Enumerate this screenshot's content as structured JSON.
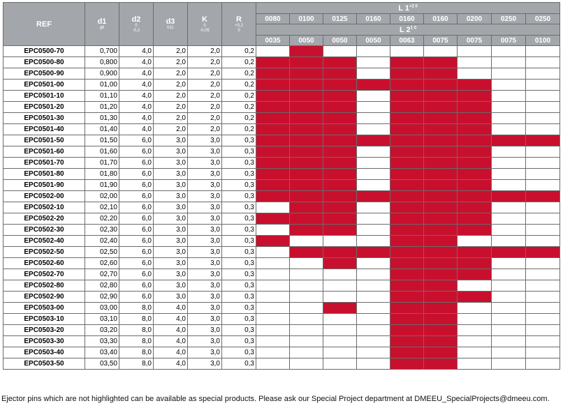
{
  "headers": {
    "ref": "REF",
    "d1": "d1",
    "d1_tol": "g6",
    "d2": "d2",
    "d2_tol_top": "0",
    "d2_tol_bottom": "-0,2",
    "d3": "d3",
    "d3_tol": "h11",
    "k": "K",
    "k_tol_top": "0",
    "k_tol_bottom": "-0,05",
    "r": "R",
    "r_tol_top": "+0,2",
    "r_tol_bottom": "0",
    "l1": "L 1",
    "l1_tol": "+2 0",
    "l2": "L 2",
    "l2_tol": "1 0"
  },
  "l1_values": [
    "0080",
    "0100",
    "0125",
    "0160",
    "0160",
    "0160",
    "0200",
    "0250",
    "0250"
  ],
  "l2_values": [
    "0035",
    "0050",
    "0050",
    "0050",
    "0063",
    "0075",
    "0075",
    "0075",
    "0100"
  ],
  "highlight_color": "#c8102e",
  "rows": [
    {
      "ref": "EPC0500-70",
      "d1": "0,700",
      "d2": "4,0",
      "d3": "2,0",
      "k": "2,0",
      "r": "0,2",
      "avail": [
        0,
        1,
        0,
        0,
        0,
        0,
        0,
        0,
        0
      ]
    },
    {
      "ref": "EPC0500-80",
      "d1": "0,800",
      "d2": "4,0",
      "d3": "2,0",
      "k": "2,0",
      "r": "0,2",
      "avail": [
        1,
        1,
        1,
        0,
        1,
        1,
        0,
        0,
        0
      ]
    },
    {
      "ref": "EPC0500-90",
      "d1": "0,900",
      "d2": "4,0",
      "d3": "2,0",
      "k": "2,0",
      "r": "0,2",
      "avail": [
        1,
        1,
        1,
        0,
        1,
        1,
        0,
        0,
        0
      ]
    },
    {
      "ref": "EPC0501-00",
      "d1": "01,00",
      "d2": "4,0",
      "d3": "2,0",
      "k": "2,0",
      "r": "0,2",
      "avail": [
        1,
        1,
        1,
        1,
        1,
        1,
        1,
        0,
        0
      ]
    },
    {
      "ref": "EPC0501-10",
      "d1": "01,10",
      "d2": "4,0",
      "d3": "2,0",
      "k": "2,0",
      "r": "0,2",
      "avail": [
        1,
        1,
        1,
        0,
        1,
        1,
        1,
        0,
        0
      ]
    },
    {
      "ref": "EPC0501-20",
      "d1": "01,20",
      "d2": "4,0",
      "d3": "2,0",
      "k": "2,0",
      "r": "0,2",
      "avail": [
        1,
        1,
        1,
        0,
        1,
        1,
        1,
        0,
        0
      ]
    },
    {
      "ref": "EPC0501-30",
      "d1": "01,30",
      "d2": "4,0",
      "d3": "2,0",
      "k": "2,0",
      "r": "0,2",
      "avail": [
        1,
        1,
        1,
        0,
        1,
        1,
        1,
        0,
        0
      ]
    },
    {
      "ref": "EPC0501-40",
      "d1": "01,40",
      "d2": "4,0",
      "d3": "2,0",
      "k": "2,0",
      "r": "0,2",
      "avail": [
        1,
        1,
        1,
        0,
        1,
        1,
        1,
        0,
        0
      ]
    },
    {
      "ref": "EPC0501-50",
      "d1": "01,50",
      "d2": "6,0",
      "d3": "3,0",
      "k": "3,0",
      "r": "0,3",
      "avail": [
        1,
        1,
        1,
        1,
        1,
        1,
        1,
        1,
        1
      ]
    },
    {
      "ref": "EPC0501-60",
      "d1": "01,60",
      "d2": "6,0",
      "d3": "3,0",
      "k": "3,0",
      "r": "0,3",
      "avail": [
        1,
        1,
        1,
        0,
        1,
        1,
        1,
        0,
        0
      ]
    },
    {
      "ref": "EPC0501-70",
      "d1": "01,70",
      "d2": "6,0",
      "d3": "3,0",
      "k": "3,0",
      "r": "0,3",
      "avail": [
        1,
        1,
        1,
        0,
        1,
        1,
        1,
        0,
        0
      ]
    },
    {
      "ref": "EPC0501-80",
      "d1": "01,80",
      "d2": "6,0",
      "d3": "3,0",
      "k": "3,0",
      "r": "0,3",
      "avail": [
        1,
        1,
        1,
        0,
        1,
        1,
        1,
        0,
        0
      ]
    },
    {
      "ref": "EPC0501-90",
      "d1": "01,90",
      "d2": "6,0",
      "d3": "3,0",
      "k": "3,0",
      "r": "0,3",
      "avail": [
        1,
        1,
        1,
        0,
        1,
        1,
        1,
        0,
        0
      ]
    },
    {
      "ref": "EPC0502-00",
      "d1": "02,00",
      "d2": "6,0",
      "d3": "3,0",
      "k": "3,0",
      "r": "0,3",
      "avail": [
        1,
        1,
        1,
        1,
        1,
        1,
        1,
        1,
        1
      ]
    },
    {
      "ref": "EPC0502-10",
      "d1": "02,10",
      "d2": "6,0",
      "d3": "3,0",
      "k": "3,0",
      "r": "0,3",
      "avail": [
        0,
        1,
        1,
        0,
        1,
        1,
        1,
        0,
        0
      ]
    },
    {
      "ref": "EPC0502-20",
      "d1": "02,20",
      "d2": "6,0",
      "d3": "3,0",
      "k": "3,0",
      "r": "0,3",
      "avail": [
        1,
        1,
        1,
        0,
        1,
        1,
        1,
        0,
        0
      ]
    },
    {
      "ref": "EPC0502-30",
      "d1": "02,30",
      "d2": "6,0",
      "d3": "3,0",
      "k": "3,0",
      "r": "0,3",
      "avail": [
        0,
        1,
        1,
        0,
        1,
        1,
        1,
        0,
        0
      ]
    },
    {
      "ref": "EPC0502-40",
      "d1": "02,40",
      "d2": "6,0",
      "d3": "3,0",
      "k": "3,0",
      "r": "0,3",
      "avail": [
        1,
        0,
        0,
        0,
        1,
        1,
        0,
        0,
        0
      ]
    },
    {
      "ref": "EPC0502-50",
      "d1": "02,50",
      "d2": "6,0",
      "d3": "3,0",
      "k": "3,0",
      "r": "0,3",
      "avail": [
        0,
        1,
        1,
        1,
        1,
        1,
        1,
        1,
        1
      ]
    },
    {
      "ref": "EPC0502-60",
      "d1": "02,60",
      "d2": "6,0",
      "d3": "3,0",
      "k": "3,0",
      "r": "0,3",
      "avail": [
        0,
        0,
        1,
        0,
        1,
        1,
        1,
        0,
        0
      ]
    },
    {
      "ref": "EPC0502-70",
      "d1": "02,70",
      "d2": "6,0",
      "d3": "3,0",
      "k": "3,0",
      "r": "0,3",
      "avail": [
        0,
        0,
        0,
        0,
        1,
        1,
        1,
        0,
        0
      ]
    },
    {
      "ref": "EPC0502-80",
      "d1": "02,80",
      "d2": "6,0",
      "d3": "3,0",
      "k": "3,0",
      "r": "0,3",
      "avail": [
        0,
        0,
        0,
        0,
        1,
        1,
        0,
        0,
        0
      ]
    },
    {
      "ref": "EPC0502-90",
      "d1": "02,90",
      "d2": "6,0",
      "d3": "3,0",
      "k": "3,0",
      "r": "0,3",
      "avail": [
        0,
        0,
        0,
        0,
        1,
        1,
        1,
        0,
        0
      ]
    },
    {
      "ref": "EPC0503-00",
      "d1": "03,00",
      "d2": "8,0",
      "d3": "4,0",
      "k": "3,0",
      "r": "0,3",
      "avail": [
        0,
        0,
        1,
        0,
        1,
        1,
        0,
        0,
        0
      ]
    },
    {
      "ref": "EPC0503-10",
      "d1": "03,10",
      "d2": "8,0",
      "d3": "4,0",
      "k": "3,0",
      "r": "0,3",
      "avail": [
        0,
        0,
        0,
        0,
        1,
        1,
        0,
        0,
        0
      ]
    },
    {
      "ref": "EPC0503-20",
      "d1": "03,20",
      "d2": "8,0",
      "d3": "4,0",
      "k": "3,0",
      "r": "0,3",
      "avail": [
        0,
        0,
        0,
        0,
        1,
        1,
        0,
        0,
        0
      ]
    },
    {
      "ref": "EPC0503-30",
      "d1": "03,30",
      "d2": "8,0",
      "d3": "4,0",
      "k": "3,0",
      "r": "0,3",
      "avail": [
        0,
        0,
        0,
        0,
        1,
        1,
        0,
        0,
        0
      ]
    },
    {
      "ref": "EPC0503-40",
      "d1": "03,40",
      "d2": "8,0",
      "d3": "4,0",
      "k": "3,0",
      "r": "0,3",
      "avail": [
        0,
        0,
        0,
        0,
        1,
        1,
        0,
        0,
        0
      ]
    },
    {
      "ref": "EPC0503-50",
      "d1": "03,50",
      "d2": "8,0",
      "d3": "4,0",
      "k": "3,0",
      "r": "0,3",
      "avail": [
        0,
        0,
        0,
        0,
        1,
        1,
        0,
        0,
        0
      ]
    }
  ],
  "footnote": "Ejector pins which are not highlighted can be available as special products. Please ask our Special Project department at DMEEU_SpecialProjects@dmeeu.com."
}
